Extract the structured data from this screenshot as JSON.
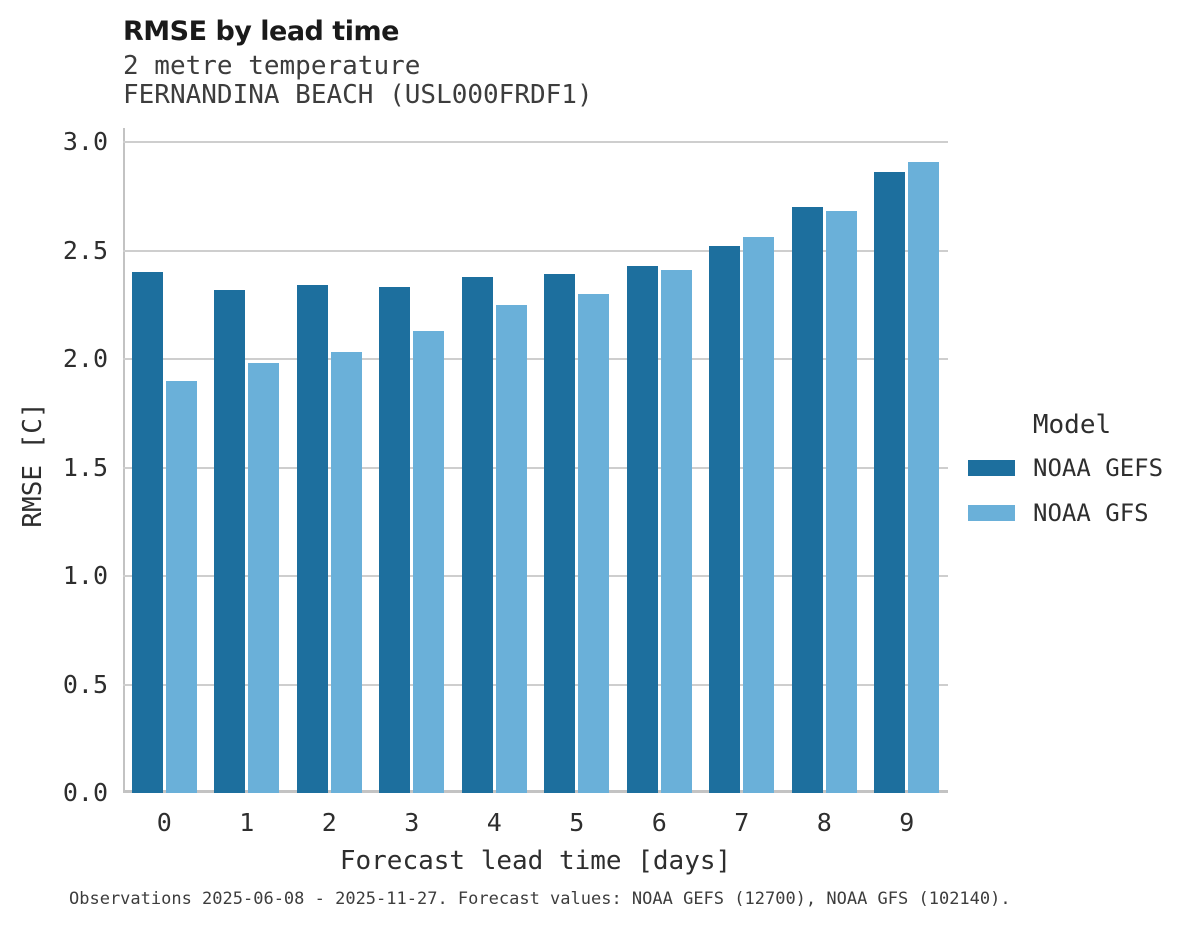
{
  "header": {
    "title": "RMSE by lead time",
    "subtitle_line1": "2 metre temperature",
    "subtitle_line2": "FERNANDINA BEACH (USL000FRDF1)"
  },
  "chart_data": {
    "type": "bar",
    "title": "RMSE by lead time",
    "subtitle": [
      "2 metre temperature",
      "FERNANDINA BEACH (USL000FRDF1)"
    ],
    "categories": [
      "0",
      "1",
      "2",
      "3",
      "4",
      "5",
      "6",
      "7",
      "8",
      "9"
    ],
    "series": [
      {
        "name": "NOAA GEFS",
        "color": "#1d6f9e",
        "values": [
          2.4,
          2.32,
          2.34,
          2.33,
          2.38,
          2.39,
          2.43,
          2.52,
          2.7,
          2.86
        ]
      },
      {
        "name": "NOAA GFS",
        "color": "#6ab0d9",
        "values": [
          1.9,
          1.98,
          2.03,
          2.13,
          2.25,
          2.3,
          2.41,
          2.56,
          2.68,
          2.91
        ]
      }
    ],
    "xlabel": "Forecast lead time [days]",
    "ylabel": "RMSE [C]",
    "ylim": [
      0.0,
      3.0
    ],
    "ytick_step": 0.5,
    "grid": true,
    "legend_title": "Model",
    "legend_position": "right",
    "grid_color": "#cecece",
    "axis_color": "#c3c3c3"
  },
  "footer": {
    "note": "Observations 2025-06-08 - 2025-11-27. Forecast values: NOAA GEFS (12700), NOAA GFS (102140)."
  }
}
